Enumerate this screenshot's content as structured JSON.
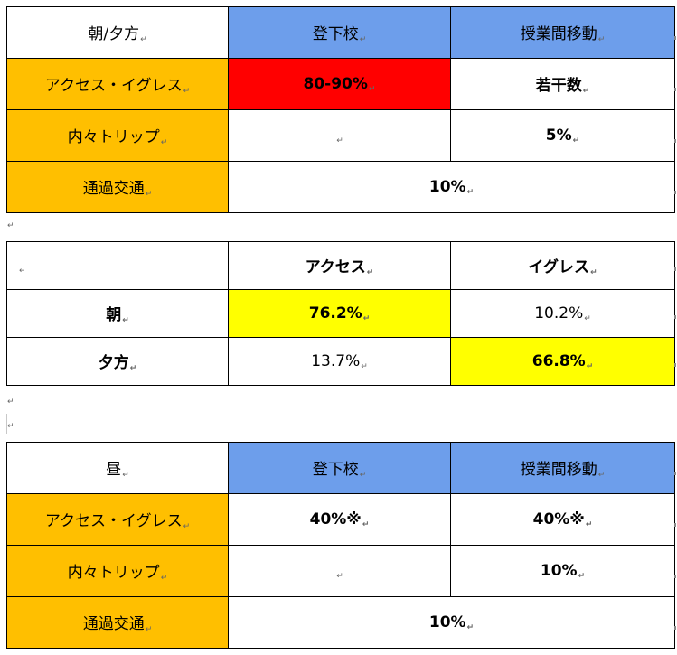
{
  "table1": {
    "header": [
      "朝/夕方",
      "登下校",
      "授業間移動"
    ],
    "rows": [
      {
        "label": "アクセス・イグレス",
        "commute": "80-90%",
        "between_classes": "若干数"
      },
      {
        "label": "内々トリップ",
        "commute": "",
        "between_classes": "5%"
      },
      {
        "label": "通過交通",
        "merged": "10%"
      }
    ]
  },
  "table2": {
    "header": [
      "",
      "アクセス",
      "イグレス"
    ],
    "rows": [
      {
        "label": "朝",
        "access": "76.2%",
        "egress": "10.2%"
      },
      {
        "label": "夕方",
        "access": "13.7%",
        "egress": "66.8%"
      }
    ]
  },
  "table3": {
    "header": [
      "昼",
      "登下校",
      "授業間移動"
    ],
    "rows": [
      {
        "label": "アクセス・イグレス",
        "commute": "40%※",
        "between_classes": "40%※"
      },
      {
        "label": "内々トリップ",
        "commute": "",
        "between_classes": "10%"
      },
      {
        "label": "通過交通",
        "merged": "10%"
      }
    ]
  },
  "marks": {
    "cell_end": "↵",
    "paragraph": "↵"
  },
  "colors": {
    "header_blue": "#6d9eeb",
    "label_orange": "#ffbf00",
    "highlight_red": "#ff0000",
    "highlight_yellow": "#ffff00"
  }
}
